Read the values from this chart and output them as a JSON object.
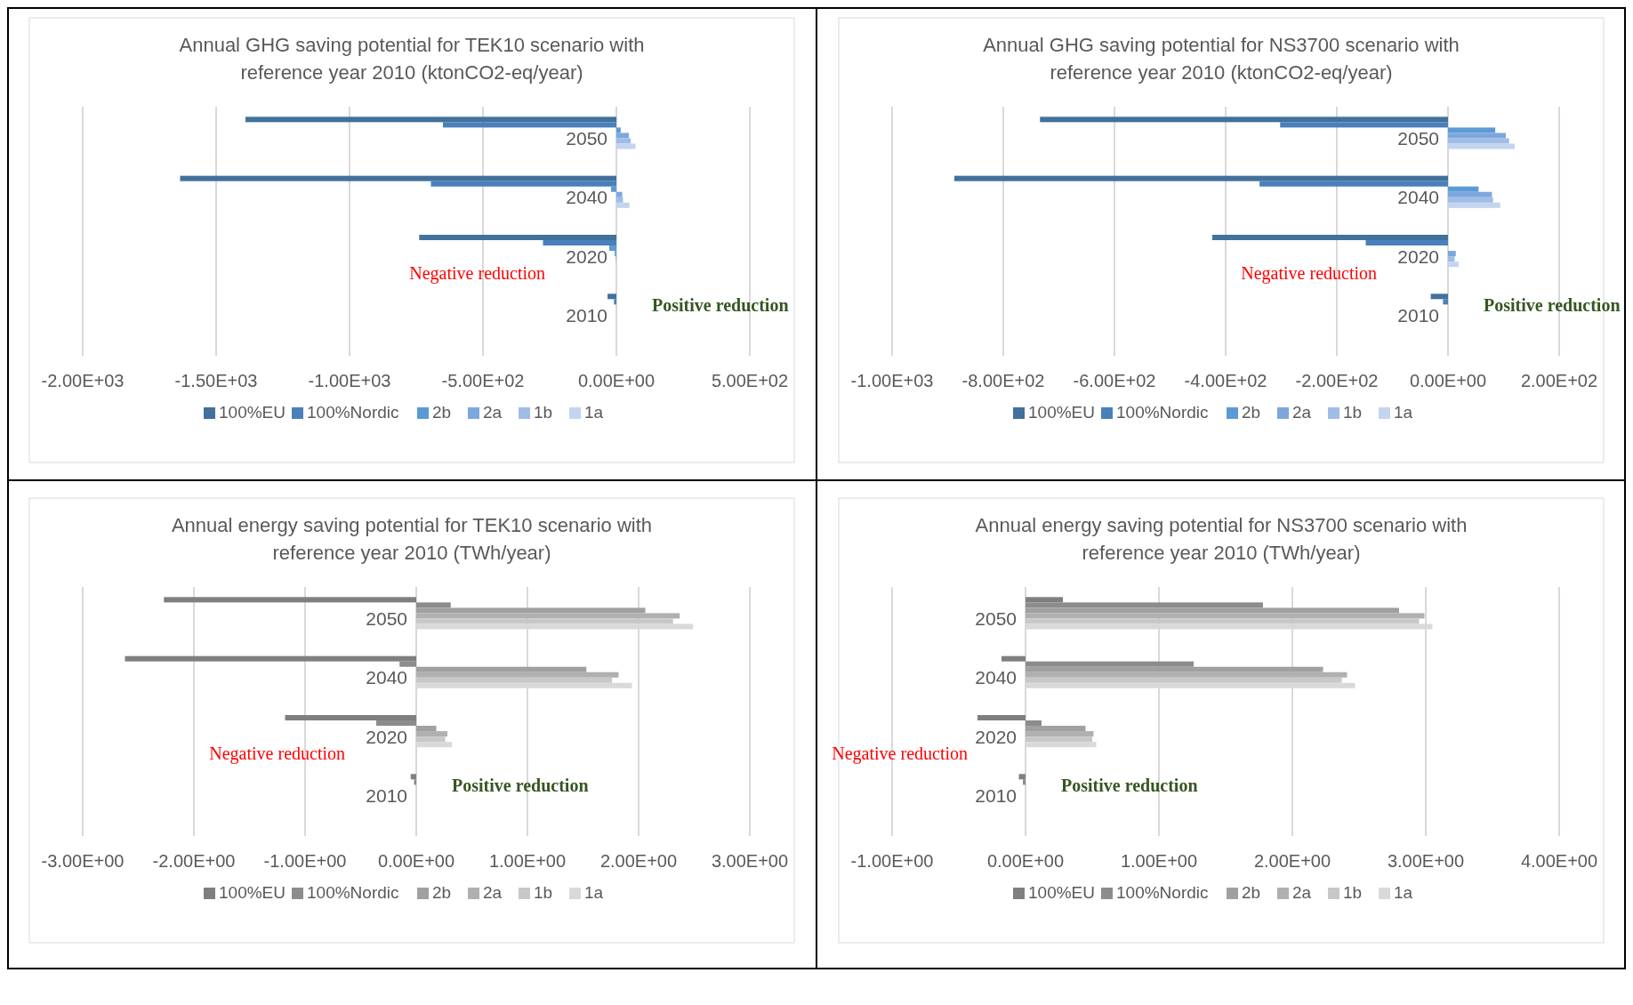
{
  "chart_data": [
    {
      "type": "bar",
      "orientation": "horizontal",
      "title": "Annual GHG saving potential for TEK10 scenario with reference year 2010 (ktonCO2-eq/year)",
      "categories": [
        "2050",
        "2040",
        "2020",
        "2010"
      ],
      "series": [
        {
          "name": "100%EU",
          "color": "#41719c",
          "values": [
            -1390,
            -1635,
            -739,
            -33
          ]
        },
        {
          "name": "100%Nordic",
          "color": "#4a80ba",
          "values": [
            -650,
            -695,
            -275,
            -9
          ]
        },
        {
          "name": "2b",
          "color": "#5b9bd5",
          "values": [
            16,
            -20,
            -27,
            0
          ]
        },
        {
          "name": "2a",
          "color": "#7da7dc",
          "values": [
            47,
            22,
            -7,
            0
          ]
        },
        {
          "name": "1b",
          "color": "#9fbde6",
          "values": [
            54,
            25,
            -3,
            0
          ]
        },
        {
          "name": "1a",
          "color": "#c3d5ee",
          "values": [
            72,
            49,
            0,
            0
          ]
        }
      ],
      "xlim": [
        -2000,
        500
      ],
      "xticks": [
        {
          "value": -2000,
          "label": "-2.00E+03"
        },
        {
          "value": -1500,
          "label": "-1.50E+03"
        },
        {
          "value": -1000,
          "label": "-1.00E+03"
        },
        {
          "value": -500,
          "label": "-5.00E+02"
        },
        {
          "value": 0,
          "label": "0.00E+00"
        },
        {
          "value": 500,
          "label": "5.00E+02"
        }
      ],
      "grid": "x",
      "legend": "bottom",
      "annotations": [
        "Negative reduction",
        "Positive reduction"
      ]
    },
    {
      "type": "bar",
      "orientation": "horizontal",
      "title": "Annual GHG saving potential for NS3700 scenario with reference year 2010 (ktonCO2-eq/year)",
      "categories": [
        "2050",
        "2040",
        "2020",
        "2010"
      ],
      "series": [
        {
          "name": "100%EU",
          "color": "#41719c",
          "values": [
            -734,
            -888,
            -424,
            -31
          ]
        },
        {
          "name": "100%Nordic",
          "color": "#4a80ba",
          "values": [
            -302,
            -339,
            -148,
            -9
          ]
        },
        {
          "name": "2b",
          "color": "#5b9bd5",
          "values": [
            85,
            55,
            0,
            0
          ]
        },
        {
          "name": "2a",
          "color": "#7da7dc",
          "values": [
            104,
            79,
            14,
            0
          ]
        },
        {
          "name": "1b",
          "color": "#9fbde6",
          "values": [
            110,
            81,
            12,
            0
          ]
        },
        {
          "name": "1a",
          "color": "#c3d5ee",
          "values": [
            120,
            94,
            19,
            0
          ]
        }
      ],
      "xlim": [
        -1000,
        200
      ],
      "xticks": [
        {
          "value": -1000,
          "label": "-1.00E+03"
        },
        {
          "value": -800,
          "label": "-8.00E+02"
        },
        {
          "value": -600,
          "label": "-6.00E+02"
        },
        {
          "value": -400,
          "label": "-4.00E+02"
        },
        {
          "value": -200,
          "label": "-2.00E+02"
        },
        {
          "value": 0,
          "label": "0.00E+00"
        },
        {
          "value": 200,
          "label": "2.00E+02"
        }
      ],
      "grid": "x",
      "legend": "bottom",
      "annotations": [
        "Negative reduction",
        "Positive reduction"
      ]
    },
    {
      "type": "bar",
      "orientation": "horizontal",
      "title": "Annual energy saving potential for TEK10 scenario with reference year 2010 (TWh/year)",
      "categories": [
        "2050",
        "2040",
        "2020",
        "2010"
      ],
      "series": [
        {
          "name": "100%EU",
          "color": "#7f7f7f",
          "values": [
            -2.27,
            -2.62,
            -1.18,
            -0.05
          ]
        },
        {
          "name": "100%Nordic",
          "color": "#8c8c8c",
          "values": [
            0.31,
            -0.15,
            -0.36,
            -0.02
          ]
        },
        {
          "name": "2b",
          "color": "#a0a0a0",
          "values": [
            2.06,
            1.53,
            0.18,
            0
          ]
        },
        {
          "name": "2a",
          "color": "#b0b0b0",
          "values": [
            2.37,
            1.82,
            0.28,
            0
          ]
        },
        {
          "name": "1b",
          "color": "#c8c8c8",
          "values": [
            2.31,
            1.76,
            0.26,
            0
          ]
        },
        {
          "name": "1a",
          "color": "#d9d9d9",
          "values": [
            2.49,
            1.94,
            0.32,
            0
          ]
        }
      ],
      "xlim": [
        -3,
        3
      ],
      "xticks": [
        {
          "value": -3,
          "label": "-3.00E+00"
        },
        {
          "value": -2,
          "label": "-2.00E+00"
        },
        {
          "value": -1,
          "label": "-1.00E+00"
        },
        {
          "value": 0,
          "label": "0.00E+00"
        },
        {
          "value": 1,
          "label": "1.00E+00"
        },
        {
          "value": 2,
          "label": "2.00E+00"
        },
        {
          "value": 3,
          "label": "3.00E+00"
        }
      ],
      "grid": "x",
      "legend": "bottom",
      "annotations": [
        "Negative reduction",
        "Positive reduction"
      ]
    },
    {
      "type": "bar",
      "orientation": "horizontal",
      "title": "Annual energy saving potential for NS3700 scenario with reference year 2010 (TWh/year)",
      "categories": [
        "2050",
        "2040",
        "2020",
        "2010"
      ],
      "series": [
        {
          "name": "100%EU",
          "color": "#7f7f7f",
          "values": [
            0.28,
            -0.18,
            -0.36,
            -0.05
          ]
        },
        {
          "name": "100%Nordic",
          "color": "#8c8c8c",
          "values": [
            1.78,
            1.26,
            0.12,
            -0.02
          ]
        },
        {
          "name": "2b",
          "color": "#a0a0a0",
          "values": [
            2.8,
            2.23,
            0.45,
            0
          ]
        },
        {
          "name": "2a",
          "color": "#b0b0b0",
          "values": [
            2.99,
            2.41,
            0.51,
            0
          ]
        },
        {
          "name": "1b",
          "color": "#c8c8c8",
          "values": [
            2.95,
            2.37,
            0.5,
            0
          ]
        },
        {
          "name": "1a",
          "color": "#d9d9d9",
          "values": [
            3.05,
            2.47,
            0.53,
            0
          ]
        }
      ],
      "xlim": [
        -1,
        4
      ],
      "xticks": [
        {
          "value": -1,
          "label": "-1.00E+00"
        },
        {
          "value": 0,
          "label": "0.00E+00"
        },
        {
          "value": 1,
          "label": "1.00E+00"
        },
        {
          "value": 2,
          "label": "2.00E+00"
        },
        {
          "value": 3,
          "label": "3.00E+00"
        },
        {
          "value": 4,
          "label": "4.00E+00"
        }
      ],
      "grid": "x",
      "legend": "bottom",
      "annotations": [
        "Negative reduction",
        "Positive reduction"
      ]
    }
  ]
}
